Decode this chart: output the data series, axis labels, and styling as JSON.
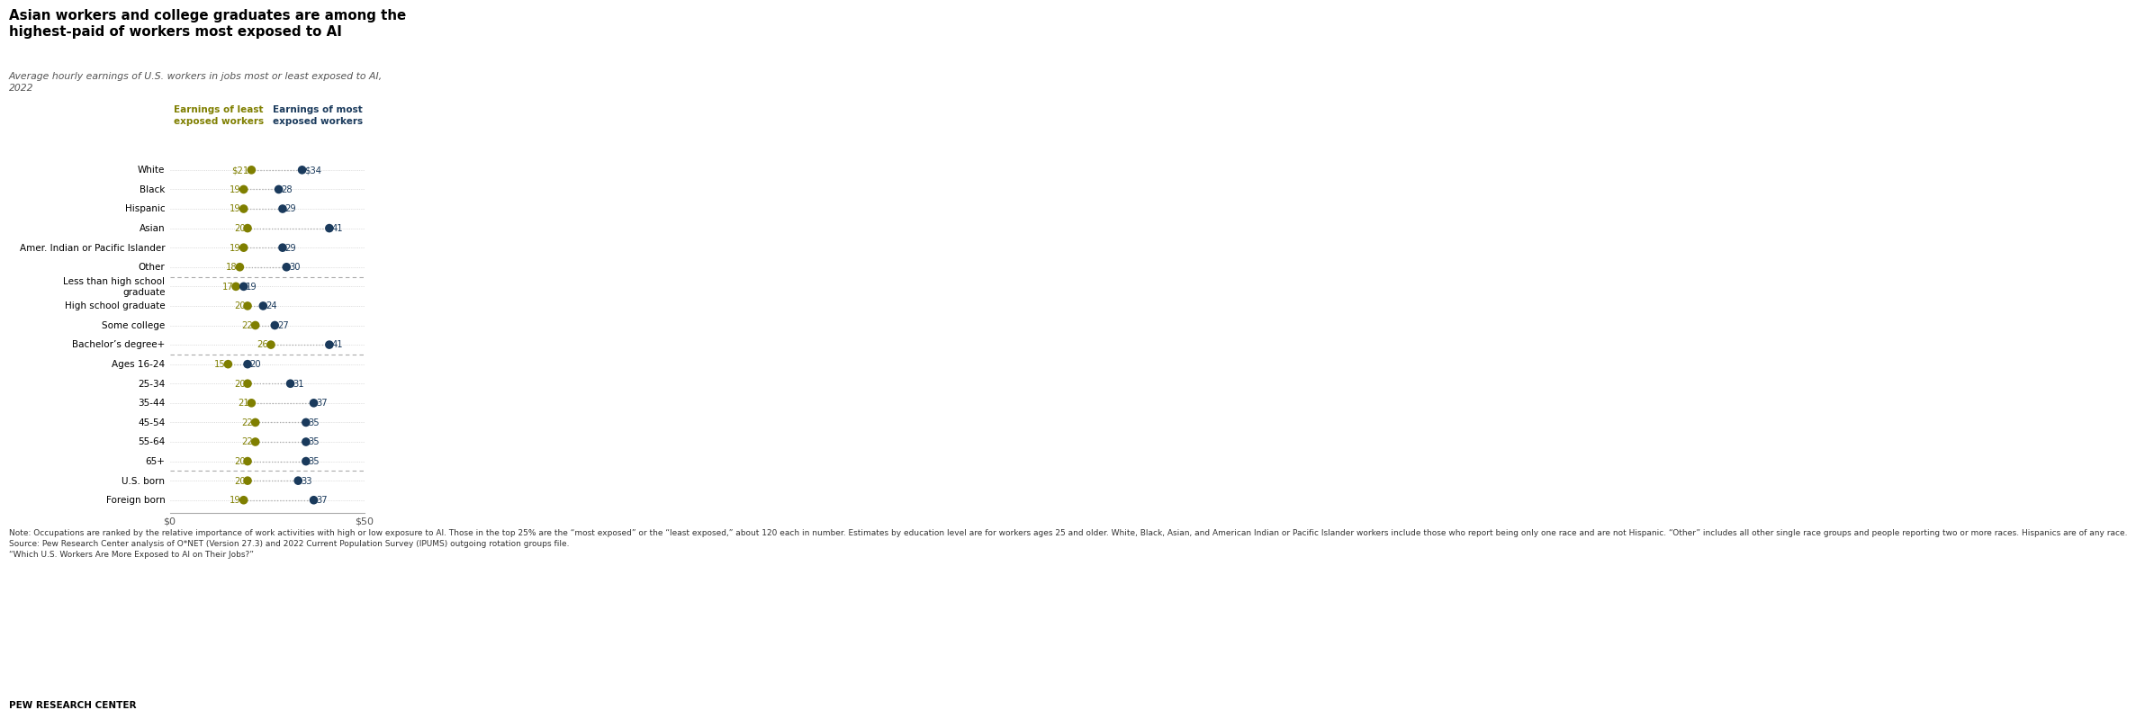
{
  "title": "Asian workers and college graduates are among the\nhighest-paid of workers most exposed to AI",
  "subtitle": "Average hourly earnings of U.S. workers in jobs most or least exposed to AI,\n2022",
  "categories": [
    "White",
    "Black",
    "Hispanic",
    "Asian",
    "Amer. Indian or Pacific Islander",
    "Other",
    "Less than high school\ngraduate",
    "High school graduate",
    "Some college",
    "Bachelor’s degree+",
    "Ages 16-24",
    "25-34",
    "35-44",
    "45-54",
    "55-64",
    "65+",
    "U.S. born",
    "Foreign born"
  ],
  "least_exposed": [
    21,
    19,
    19,
    20,
    19,
    18,
    17,
    20,
    22,
    26,
    15,
    20,
    21,
    22,
    22,
    20,
    20,
    19
  ],
  "most_exposed": [
    34,
    28,
    29,
    41,
    29,
    30,
    19,
    24,
    27,
    41,
    20,
    31,
    37,
    35,
    35,
    35,
    33,
    37
  ],
  "separator_after_idx": [
    5,
    9,
    15
  ],
  "color_least": "#7f7f00",
  "color_most": "#1a3a5c",
  "xlim": [
    0,
    50
  ],
  "note_text": "Note: Occupations are ranked by the relative importance of work activities with high or low exposure to AI. Those in the top 25% are the “most exposed” or the “least exposed,” about 120 each in number. Estimates by education level are for workers ages 25 and older. White, Black, Asian, and American Indian or Pacific Islander workers include those who report being only one race and are not Hispanic. “Other” includes all other single race groups and people reporting two or more races. Hispanics are of any race.\nSource: Pew Research Center analysis of O*NET (Version 27.3) and 2022 Current Population Survey (IPUMS) outgoing rotation groups file.\n“Which U.S. Workers Are More Exposed to AI on Their Jobs?”",
  "footer": "PEW RESEARCH CENTER"
}
